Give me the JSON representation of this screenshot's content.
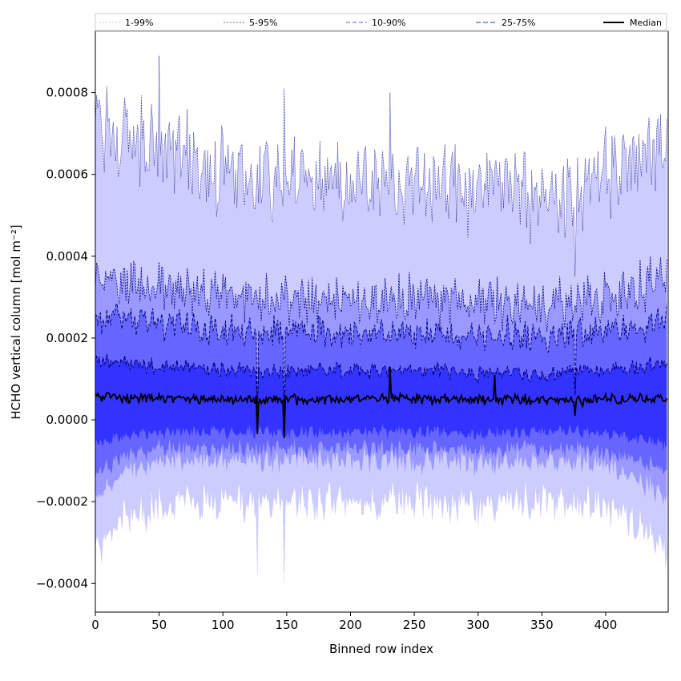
{
  "chart_data": {
    "type": "area",
    "title": "",
    "xlabel": "Binned row index",
    "ylabel": "HCHO vertical column [mol m⁻²]",
    "xlim": [
      0,
      449
    ],
    "ylim": [
      -0.00047,
      0.00095
    ],
    "x_ticks": [
      0,
      50,
      100,
      150,
      200,
      250,
      300,
      350,
      400
    ],
    "x_tick_labels": [
      "0",
      "50",
      "100",
      "150",
      "200",
      "250",
      "300",
      "350",
      "400"
    ],
    "y_ticks": [
      -0.0004,
      -0.0002,
      0.0,
      0.0002,
      0.0004,
      0.0006,
      0.0008
    ],
    "y_tick_labels": [
      "−0.0004",
      "−0.0002",
      "0.0000",
      "0.0002",
      "0.0004",
      "0.0006",
      "0.0008"
    ],
    "grid": false,
    "legend_position": "top, above plot, 5 columns",
    "x_step": 1,
    "x_count": 449,
    "series_profile_points": {
      "x": [
        0,
        20,
        50,
        75,
        100,
        125,
        150,
        175,
        200,
        225,
        250,
        275,
        300,
        325,
        350,
        375,
        400,
        425,
        449
      ],
      "upper_99": [
        0.0007,
        0.00068,
        0.00066,
        0.00064,
        0.00061,
        0.00059,
        0.0006,
        0.0006,
        0.00058,
        0.00059,
        0.00058,
        0.00057,
        0.00056,
        0.00058,
        0.00054,
        0.00056,
        0.0006,
        0.00064,
        0.00068
      ],
      "upper_95": [
        0.00034,
        0.00034,
        0.00033,
        0.00032,
        0.00031,
        0.0003,
        0.0003,
        0.0003,
        0.0003,
        0.0003,
        0.0003,
        0.00029,
        0.00028,
        0.00029,
        0.00028,
        0.00029,
        0.0003,
        0.00032,
        0.00035
      ],
      "upper_90": [
        0.00025,
        0.00025,
        0.00024,
        0.00023,
        0.00022,
        0.00022,
        0.00022,
        0.00022,
        0.00021,
        0.00022,
        0.00021,
        0.00021,
        0.0002,
        0.00021,
        0.0002,
        0.00021,
        0.00022,
        0.00023,
        0.00025
      ],
      "upper_75": [
        0.00014,
        0.00014,
        0.00013,
        0.00013,
        0.00012,
        0.00012,
        0.00012,
        0.00012,
        0.00012,
        0.00012,
        0.00012,
        0.00012,
        0.00011,
        0.00012,
        0.00011,
        0.00012,
        0.00012,
        0.00013,
        0.00014
      ],
      "median": [
        6e-05,
        5.5e-05,
        5.2e-05,
        5.2e-05,
        5e-05,
        4.8e-05,
        5e-05,
        5e-05,
        5e-05,
        5.2e-05,
        5e-05,
        5e-05,
        4.8e-05,
        5e-05,
        4.8e-05,
        4.8e-05,
        5e-05,
        5.2e-05,
        5.5e-05
      ],
      "lower_25": [
        -6e-05,
        -4e-05,
        -3e-05,
        -3e-05,
        -3e-05,
        -3e-05,
        -3e-05,
        -3e-05,
        -3e-05,
        -3e-05,
        -3e-05,
        -3e-05,
        -3.5e-05,
        -3e-05,
        -3e-05,
        -3e-05,
        -3.5e-05,
        -4.5e-05,
        -6e-05
      ],
      "lower_10": [
        -0.00013,
        -9e-05,
        -7e-05,
        -7e-05,
        -7e-05,
        -7e-05,
        -7e-05,
        -7e-05,
        -7e-05,
        -7e-05,
        -7e-05,
        -7e-05,
        -8e-05,
        -7e-05,
        -7e-05,
        -7e-05,
        -8e-05,
        -0.0001,
        -0.00013
      ],
      "lower_5": [
        -0.00019,
        -0.00013,
        -0.0001,
        -0.0001,
        -0.0001,
        -0.0001,
        -0.0001,
        -0.0001,
        -0.0001,
        -0.0001,
        -0.0001,
        -0.0001,
        -0.00011,
        -0.0001,
        -0.0001,
        -0.0001,
        -0.00011,
        -0.00014,
        -0.00019
      ],
      "lower_1": [
        -0.00033,
        -0.00025,
        -0.00021,
        -0.0002,
        -0.0002,
        -0.0002,
        -0.0002,
        -0.0002,
        -0.0002,
        -0.0002,
        -0.0002,
        -0.0002,
        -0.00021,
        -0.0002,
        -0.0002,
        -0.0002,
        -0.00021,
        -0.00026,
        -0.00033
      ]
    },
    "spikes": [
      {
        "x": 50,
        "upper_99": 0.00089
      },
      {
        "x": 127,
        "median": -3.5e-05,
        "lower_1": -0.00038
      },
      {
        "x": 148,
        "median": -4.5e-05,
        "upper_99": 0.00081,
        "lower_1": -0.0004
      },
      {
        "x": 231,
        "median": 0.00013,
        "upper_99": 0.0008
      },
      {
        "x": 313,
        "median": 0.00011,
        "upper_99": 0.00062
      },
      {
        "x": 376,
        "median": 1e-05,
        "upper_99": 0.00035
      }
    ],
    "legend": [
      {
        "label": "1-99%",
        "fill": "#ccccff",
        "line": "#d0d0e8",
        "dash": "2,2"
      },
      {
        "label": "5-95%",
        "fill": "#9999ff",
        "line": "#5555cc",
        "dash": "2,2"
      },
      {
        "label": "10-90%",
        "fill": "#6666ff",
        "line": "#5a5ad8",
        "dash": "5,3"
      },
      {
        "label": "25-75%",
        "fill": "#3333ff",
        "line": "#2a2acc",
        "dash": "6,3"
      },
      {
        "label": "Median",
        "fill": "none",
        "line": "#000000",
        "dash": ""
      }
    ],
    "colors": {
      "band_1_99": "#ccccff",
      "band_5_95": "#9999ff",
      "band_10_90": "#6666ff",
      "band_25_75": "#3333ff",
      "median": "#000000",
      "percentile_lines": "#00007a"
    }
  }
}
